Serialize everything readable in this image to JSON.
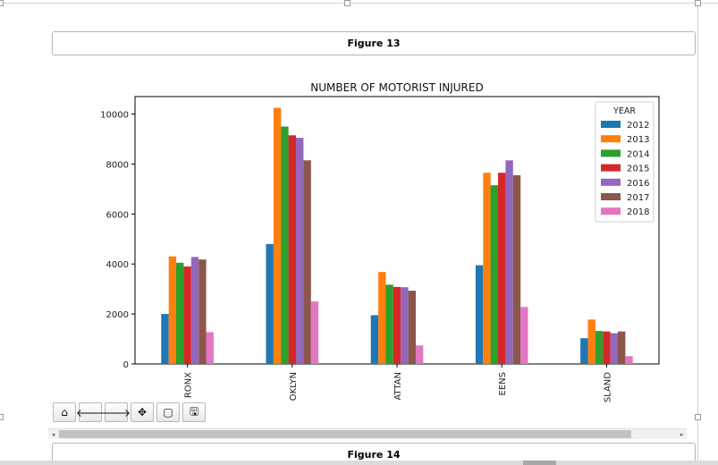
{
  "figure_header": "Figure 13",
  "next_figure_header": "Figure 14",
  "toolbar": {
    "buttons": [
      {
        "name": "home-icon",
        "glyph": "⌂"
      },
      {
        "name": "back-arrow-icon",
        "glyph": "🡐"
      },
      {
        "name": "forward-arrow-icon",
        "glyph": "🡒"
      },
      {
        "name": "pan-move-icon",
        "glyph": "✥"
      },
      {
        "name": "zoom-rect-icon",
        "glyph": "▢"
      },
      {
        "name": "save-icon",
        "glyph": "🖫"
      }
    ]
  },
  "chart_data": {
    "type": "bar",
    "title": "NUMBER OF MOTORIST INJURED",
    "xlabel": "",
    "ylabel": "",
    "categories": [
      "BRONX",
      "BROOKLYN",
      "MANHATTAN",
      "QUEENS",
      "STATEN ISLAND"
    ],
    "category_tick_text": [
      "RONX",
      "OKLYN",
      "ATTAN",
      "EENS",
      "SLAND"
    ],
    "ylim": [
      0,
      10700
    ],
    "yticks": [
      0,
      2000,
      4000,
      6000,
      8000,
      10000
    ],
    "grid": false,
    "legend": {
      "title": "YEAR",
      "placement": "top-right"
    },
    "series": [
      {
        "name": "2012",
        "color": "#1f77b4",
        "values": [
          2000,
          4800,
          1950,
          3950,
          1030
        ]
      },
      {
        "name": "2013",
        "color": "#ff7f0e",
        "values": [
          4300,
          10250,
          3680,
          7650,
          1780
        ]
      },
      {
        "name": "2014",
        "color": "#2ca02c",
        "values": [
          4050,
          9500,
          3170,
          7150,
          1320
        ]
      },
      {
        "name": "2015",
        "color": "#d62728",
        "values": [
          3900,
          9150,
          3080,
          7650,
          1300
        ]
      },
      {
        "name": "2016",
        "color": "#9467bd",
        "values": [
          4280,
          9050,
          3070,
          8150,
          1230
        ]
      },
      {
        "name": "2017",
        "color": "#8c564b",
        "values": [
          4180,
          8150,
          2930,
          7550,
          1300
        ]
      },
      {
        "name": "2018",
        "color": "#e377c2",
        "values": [
          1270,
          2500,
          740,
          2280,
          310
        ]
      }
    ]
  }
}
